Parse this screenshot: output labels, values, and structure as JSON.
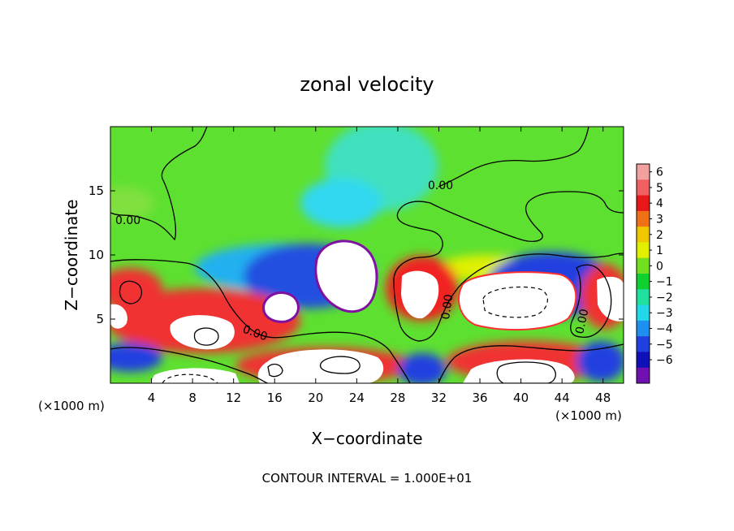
{
  "chart_data": {
    "type": "heatmap",
    "title": "zonal velocity",
    "xlabel": "X−coordinate",
    "ylabel": "Z−coordinate",
    "x_unit_left": "(×1000 m)",
    "x_unit_right": "(×1000 m)",
    "xlim": [
      0,
      50
    ],
    "ylim": [
      0,
      20
    ],
    "x_ticks": [
      4,
      8,
      12,
      16,
      20,
      24,
      28,
      32,
      36,
      40,
      44,
      48
    ],
    "y_ticks": [
      5,
      10,
      15
    ],
    "colorbar": {
      "ticks": [
        6,
        5,
        4,
        3,
        2,
        1,
        0,
        -1,
        -2,
        -3,
        -4,
        -5,
        -6
      ],
      "colors": [
        "#f2a0a0",
        "#f06060",
        "#e81818",
        "#f07018",
        "#f0c800",
        "#e0f000",
        "#70e020",
        "#10d030",
        "#20e0a0",
        "#20d8e8",
        "#2090f0",
        "#2040e0",
        "#1010b8",
        "#7010b0"
      ]
    },
    "contour_label": "0.00",
    "footer": "CONTOUR INTERVAL = 1.000E+01"
  }
}
